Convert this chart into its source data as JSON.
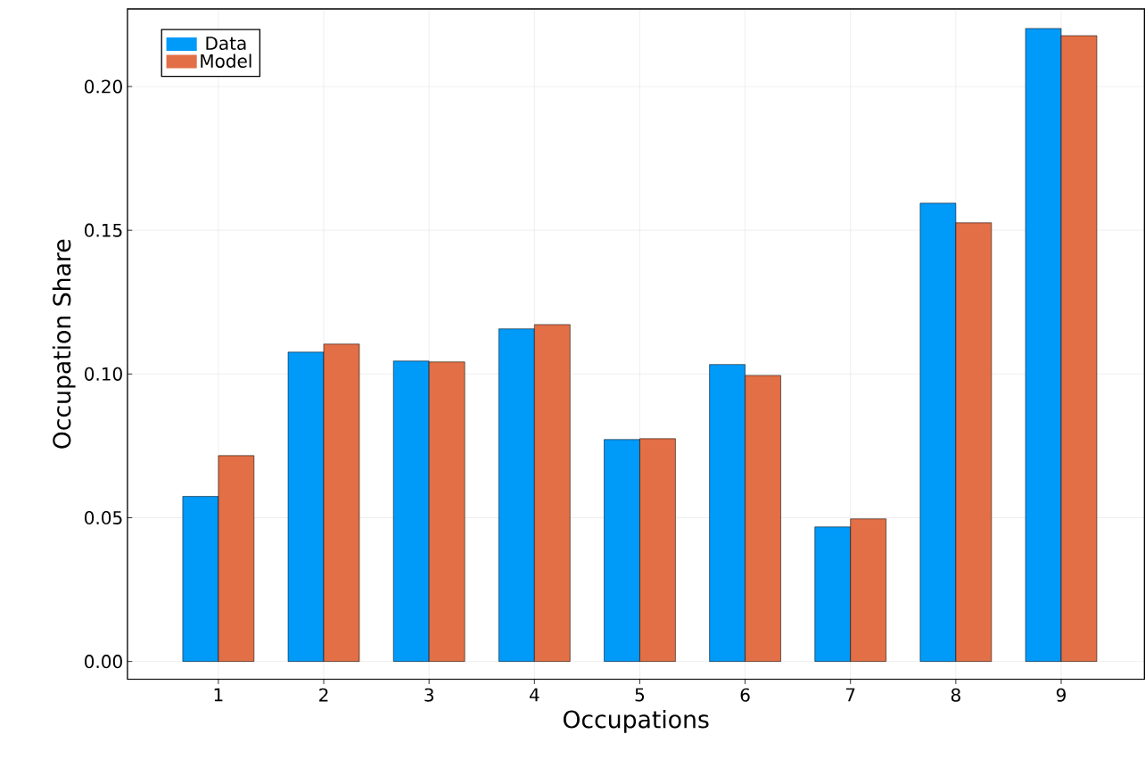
{
  "chart_data": {
    "type": "bar",
    "xlabel": "Occupations",
    "ylabel": "Occupation Share",
    "categories": [
      "1",
      "2",
      "3",
      "4",
      "5",
      "6",
      "7",
      "8",
      "9"
    ],
    "series": [
      {
        "name": "Data",
        "color": "#009af9",
        "values": [
          0.0574,
          0.1076,
          0.1045,
          0.1157,
          0.0772,
          0.1033,
          0.0468,
          0.1594,
          0.2202
        ]
      },
      {
        "name": "Model",
        "color": "#e26f46",
        "values": [
          0.0716,
          0.1104,
          0.1042,
          0.1172,
          0.0775,
          0.0995,
          0.0496,
          0.1526,
          0.2177
        ]
      }
    ],
    "ylim": [
      -0.0062,
      0.227
    ],
    "yticks": [
      {
        "value": 0,
        "label": "0.00"
      },
      {
        "value": 0.05,
        "label": "0.05"
      },
      {
        "value": 0.1,
        "label": "0.10"
      },
      {
        "value": 0.15,
        "label": "0.15"
      },
      {
        "value": 0.2,
        "label": "0.20"
      }
    ],
    "grid": true,
    "legend": "top left"
  }
}
